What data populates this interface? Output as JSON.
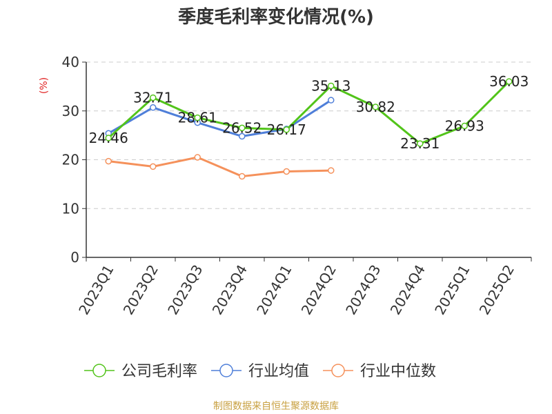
{
  "title": "季度毛利率变化情况(%)",
  "footer": "制图数据来自恒生聚源数据库",
  "chart_data": {
    "type": "line",
    "ylabel": "(%)",
    "ylim": [
      0,
      40
    ],
    "yticks": [
      "0",
      "10",
      "20",
      "30",
      "40"
    ],
    "grid": true,
    "legend_position": "bottom",
    "categories": [
      "2023Q1",
      "2023Q2",
      "2023Q3",
      "2023Q4",
      "2024Q1",
      "2024Q2",
      "2024Q3",
      "2024Q4",
      "2025Q1",
      "2025Q2"
    ],
    "series": [
      {
        "name": "公司毛利率",
        "color": "#52c41a",
        "values": [
          24.46,
          32.71,
          28.61,
          26.52,
          26.17,
          35.13,
          30.82,
          23.31,
          26.93,
          36.03
        ],
        "labels": [
          "24.46",
          "32.71",
          "28.61",
          "26.52",
          "26.17",
          "35.13",
          "30.82",
          "23.31",
          "26.93",
          "36.03"
        ]
      },
      {
        "name": "行业均值",
        "color": "#4f7fd9",
        "values": [
          25.4,
          30.7,
          27.6,
          24.8,
          26.3,
          32.2,
          null,
          null,
          null,
          null
        ]
      },
      {
        "name": "行业中位数",
        "color": "#f5915b",
        "values": [
          19.7,
          18.6,
          20.5,
          16.6,
          17.6,
          17.8,
          null,
          null,
          null,
          null
        ]
      }
    ]
  }
}
